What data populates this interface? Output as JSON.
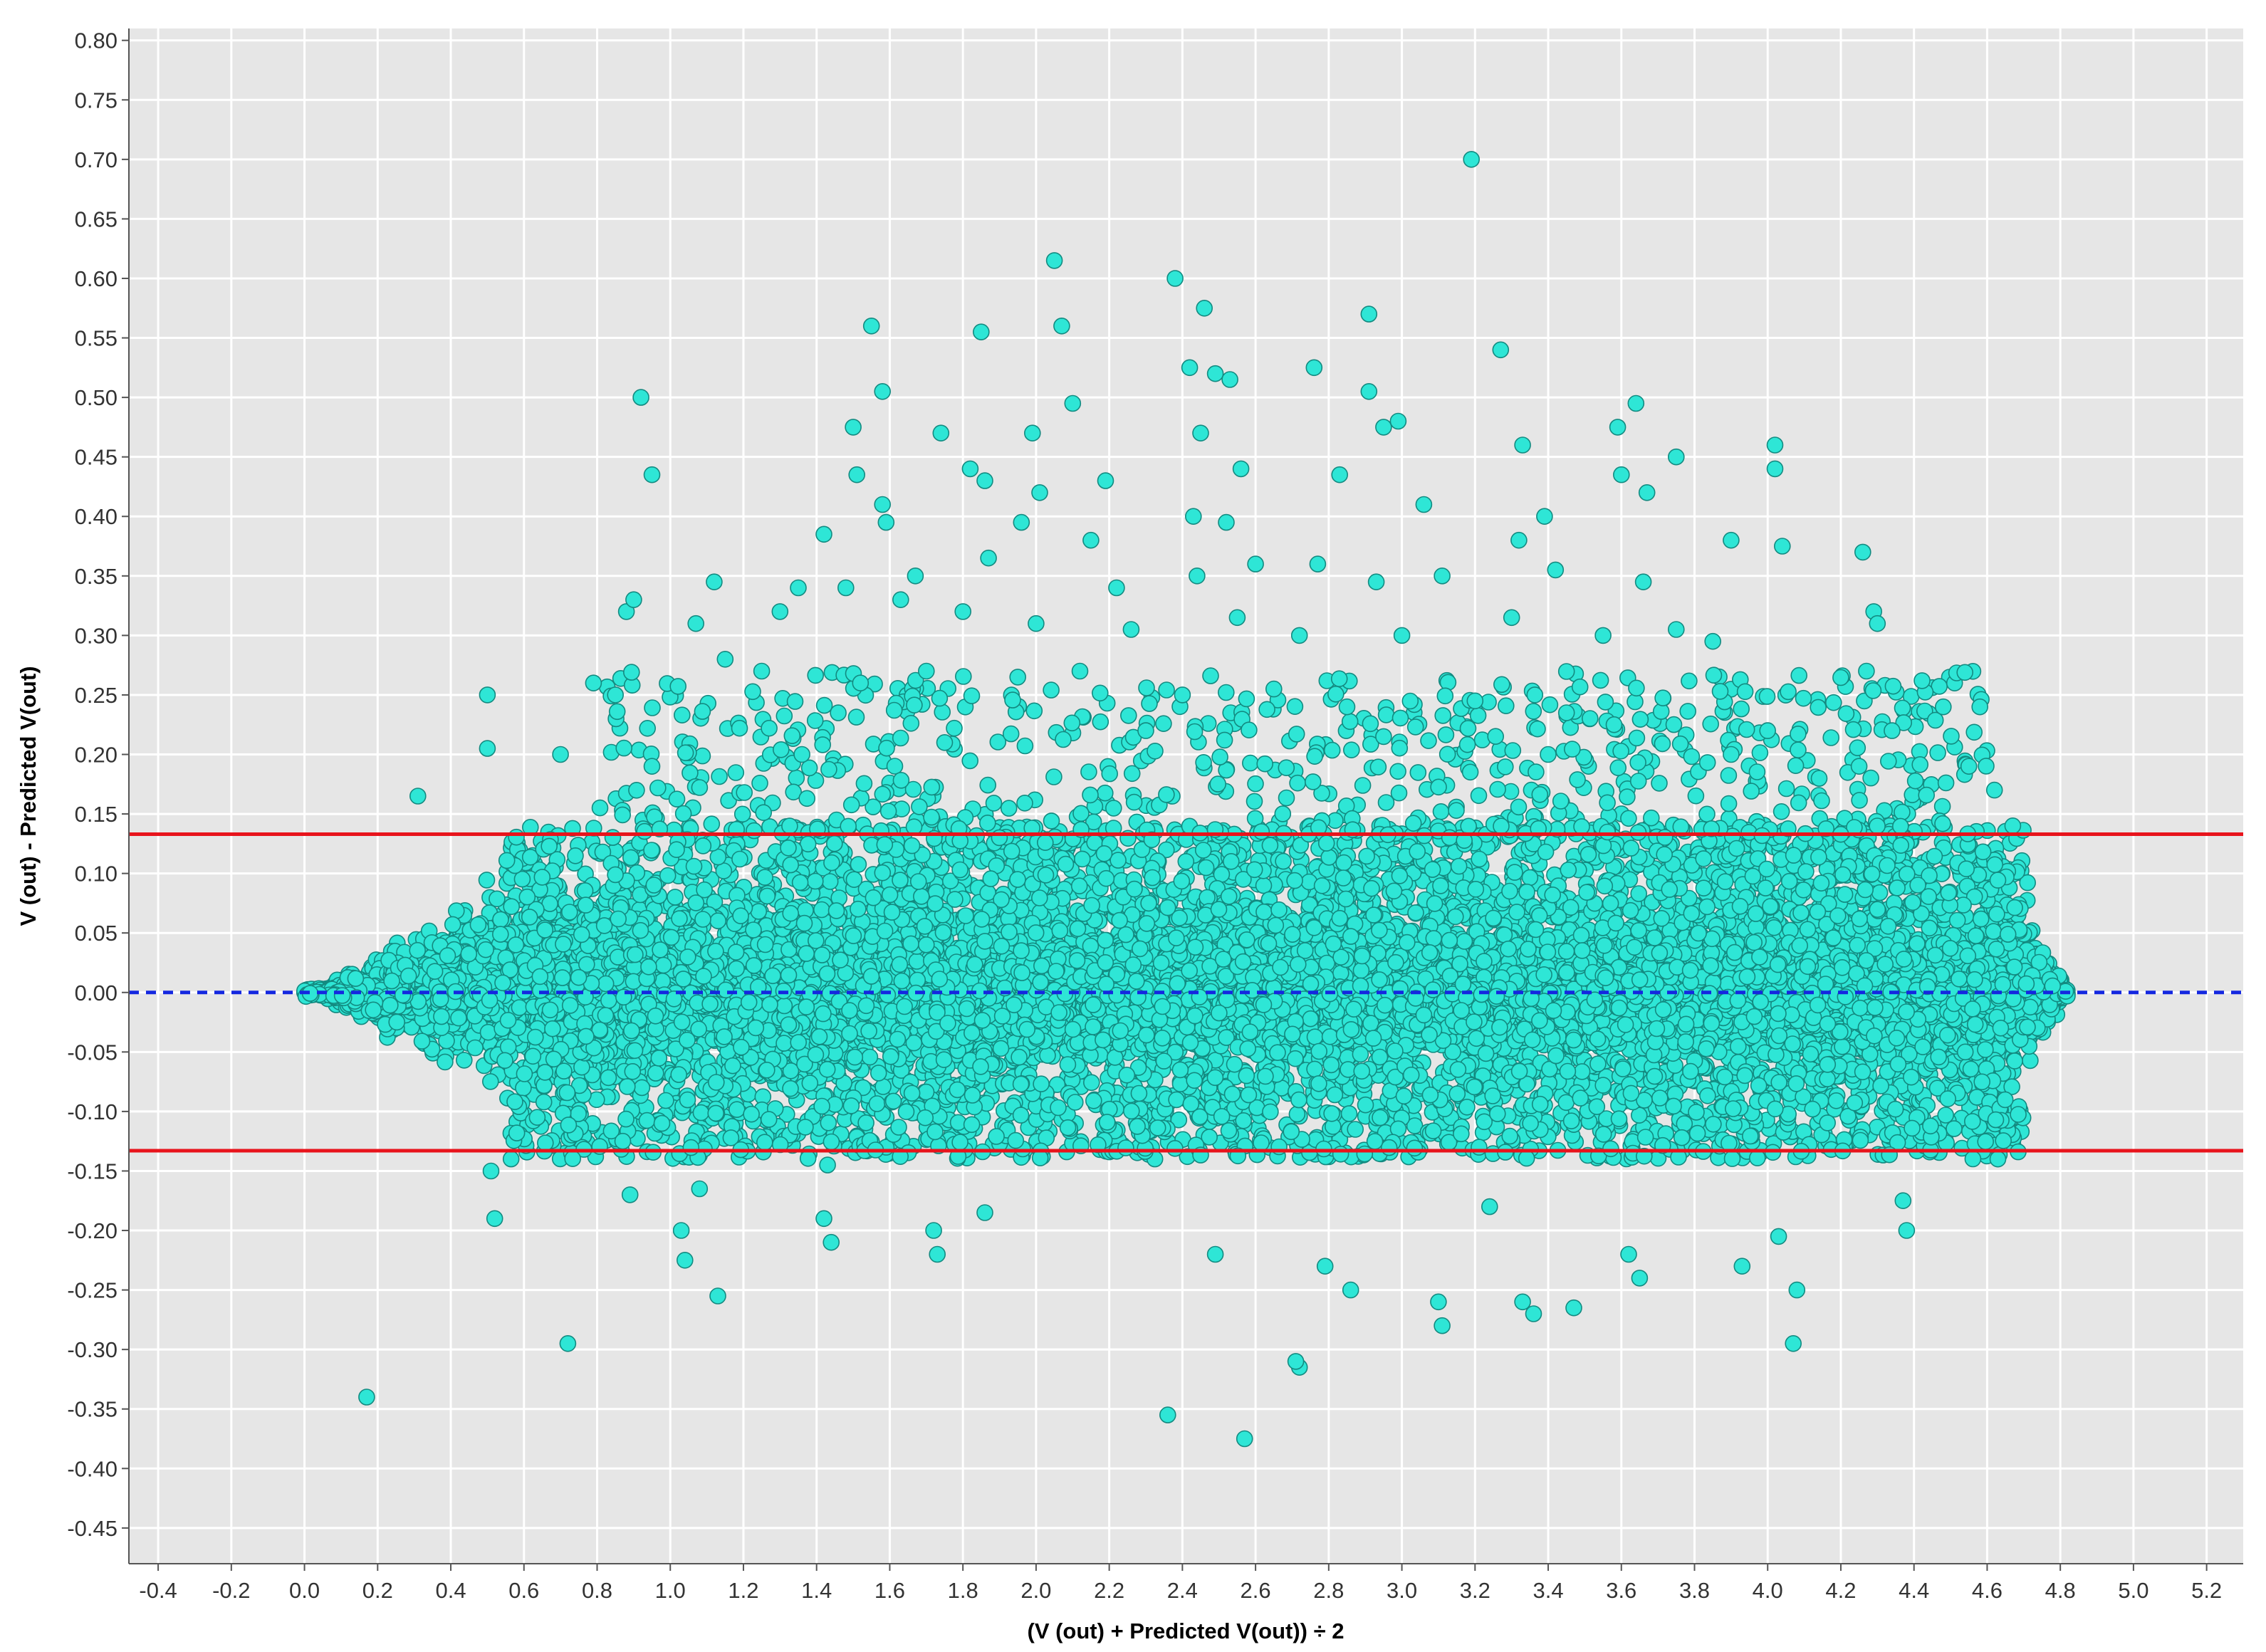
{
  "chart_data": {
    "type": "scatter",
    "title": "",
    "xlabel": "(V (out) + Predicted V(out)) ÷ 2",
    "ylabel": "V (out) - Predicted V(out)",
    "xlim": [
      -0.48,
      5.3
    ],
    "ylim": [
      -0.48,
      0.81
    ],
    "x_ticks": [
      -0.4,
      -0.2,
      0.0,
      0.2,
      0.4,
      0.6,
      0.8,
      1.0,
      1.2,
      1.4,
      1.6,
      1.8,
      2.0,
      2.2,
      2.4,
      2.6,
      2.8,
      3.0,
      3.2,
      3.4,
      3.6,
      3.8,
      4.0,
      4.2,
      4.4,
      4.6,
      4.8,
      5.0,
      5.2
    ],
    "x_tick_labels": [
      "-0.4",
      "-0.2",
      "0.0",
      "0.2",
      "0.4",
      "0.6",
      "0.8",
      "1.0",
      "1.2",
      "1.4",
      "1.6",
      "1.8",
      "2.0",
      "2.2",
      "2.4",
      "2.6",
      "2.8",
      "3.0",
      "3.2",
      "3.4",
      "3.6",
      "3.8",
      "4.0",
      "4.2",
      "4.4",
      "4.6",
      "4.8",
      "5.0",
      "5.2"
    ],
    "y_ticks": [
      0.8,
      0.75,
      0.7,
      0.65,
      0.6,
      0.55,
      0.5,
      0.45,
      0.4,
      0.35,
      0.3,
      0.25,
      0.2,
      0.15,
      0.1,
      0.05,
      0.0,
      -0.05,
      -0.1,
      -0.15,
      -0.2,
      -0.25,
      -0.3,
      -0.35,
      -0.4,
      -0.45
    ],
    "y_tick_labels": [
      "0.80",
      "0.75",
      "0.70",
      "0.65",
      "0.60",
      "0.55",
      "0.50",
      "0.45",
      "0.40",
      "0.35",
      "0.30",
      "0.25",
      "0.20",
      "0.15",
      "0.10",
      "0.05",
      "0.00",
      "-0.05",
      "-0.10",
      "-0.15",
      "-0.20",
      "-0.25",
      "-0.30",
      "-0.35",
      "-0.40",
      "-0.45"
    ],
    "grid": true,
    "legend": "none",
    "reference_lines": [
      {
        "y": 0.133,
        "color": "#e8141c",
        "style": "solid"
      },
      {
        "y": 0.0,
        "color": "#1428e0",
        "style": "dashed"
      },
      {
        "y": -0.133,
        "color": "#e8141c",
        "style": "solid"
      }
    ],
    "colors": {
      "marker_fill": "#2ee6d6",
      "marker_edge": "#138a80",
      "plot_background": "#e6e6e6",
      "grid": "#ffffff"
    },
    "series": [
      {
        "points": [
          [
            0.17,
            -0.34
          ],
          [
            0.72,
            -0.295
          ],
          [
            0.52,
            -0.19
          ],
          [
            0.51,
            -0.15
          ],
          [
            0.89,
            -0.17
          ],
          [
            1.03,
            -0.2
          ],
          [
            1.04,
            -0.225
          ],
          [
            1.13,
            -0.255
          ],
          [
            1.08,
            -0.165
          ],
          [
            0.87,
            -0.125
          ],
          [
            1.42,
            -0.19
          ],
          [
            1.44,
            -0.21
          ],
          [
            1.43,
            -0.145
          ],
          [
            1.73,
            -0.22
          ],
          [
            1.72,
            -0.2
          ],
          [
            1.86,
            -0.185
          ],
          [
            2.36,
            -0.355
          ],
          [
            2.57,
            -0.375
          ],
          [
            2.72,
            -0.315
          ],
          [
            2.71,
            -0.31
          ],
          [
            2.49,
            -0.22
          ],
          [
            2.86,
            -0.25
          ],
          [
            2.79,
            -0.23
          ],
          [
            3.1,
            -0.26
          ],
          [
            3.11,
            -0.28
          ],
          [
            3.33,
            -0.26
          ],
          [
            3.36,
            -0.27
          ],
          [
            3.47,
            -0.265
          ],
          [
            3.62,
            -0.22
          ],
          [
            3.65,
            -0.24
          ],
          [
            3.93,
            -0.23
          ],
          [
            4.03,
            -0.205
          ],
          [
            4.07,
            -0.295
          ],
          [
            4.08,
            -0.25
          ],
          [
            4.38,
            -0.2
          ],
          [
            4.37,
            -0.175
          ],
          [
            3.24,
            -0.18
          ],
          [
            3.19,
            0.7
          ],
          [
            2.05,
            0.615
          ],
          [
            2.38,
            0.6
          ],
          [
            2.46,
            0.575
          ],
          [
            2.07,
            0.56
          ],
          [
            1.55,
            0.56
          ],
          [
            1.85,
            0.555
          ],
          [
            2.91,
            0.57
          ],
          [
            3.27,
            0.54
          ],
          [
            2.42,
            0.525
          ],
          [
            2.49,
            0.52
          ],
          [
            2.53,
            0.515
          ],
          [
            2.76,
            0.525
          ],
          [
            0.92,
            0.5
          ],
          [
            1.58,
            0.505
          ],
          [
            2.1,
            0.495
          ],
          [
            2.91,
            0.505
          ],
          [
            3.64,
            0.495
          ],
          [
            1.5,
            0.475
          ],
          [
            1.74,
            0.47
          ],
          [
            1.99,
            0.47
          ],
          [
            2.45,
            0.47
          ],
          [
            2.95,
            0.475
          ],
          [
            2.99,
            0.48
          ],
          [
            3.33,
            0.46
          ],
          [
            3.59,
            0.475
          ],
          [
            4.02,
            0.46
          ],
          [
            4.02,
            0.44
          ],
          [
            0.95,
            0.435
          ],
          [
            1.51,
            0.435
          ],
          [
            1.82,
            0.44
          ],
          [
            1.86,
            0.43
          ],
          [
            2.56,
            0.44
          ],
          [
            2.83,
            0.435
          ],
          [
            3.6,
            0.435
          ],
          [
            3.67,
            0.42
          ],
          [
            3.75,
            0.45
          ],
          [
            1.58,
            0.41
          ],
          [
            1.59,
            0.395
          ],
          [
            2.01,
            0.42
          ],
          [
            2.19,
            0.43
          ],
          [
            2.52,
            0.395
          ],
          [
            3.06,
            0.41
          ],
          [
            3.39,
            0.4
          ],
          [
            1.42,
            0.385
          ],
          [
            1.96,
            0.395
          ],
          [
            2.15,
            0.38
          ],
          [
            2.43,
            0.4
          ],
          [
            3.32,
            0.38
          ],
          [
            3.9,
            0.38
          ],
          [
            4.04,
            0.375
          ],
          [
            4.26,
            0.37
          ],
          [
            1.12,
            0.345
          ],
          [
            1.35,
            0.34
          ],
          [
            1.67,
            0.35
          ],
          [
            1.87,
            0.365
          ],
          [
            2.22,
            0.34
          ],
          [
            2.44,
            0.35
          ],
          [
            2.6,
            0.36
          ],
          [
            2.77,
            0.36
          ],
          [
            2.93,
            0.345
          ],
          [
            3.11,
            0.35
          ],
          [
            3.42,
            0.355
          ],
          [
            3.66,
            0.345
          ],
          [
            4.29,
            0.32
          ],
          [
            4.3,
            0.31
          ],
          [
            0.88,
            0.32
          ],
          [
            0.9,
            0.33
          ],
          [
            1.07,
            0.31
          ],
          [
            1.3,
            0.32
          ],
          [
            1.48,
            0.34
          ],
          [
            1.63,
            0.33
          ],
          [
            1.8,
            0.32
          ],
          [
            2.0,
            0.31
          ],
          [
            2.26,
            0.305
          ],
          [
            2.55,
            0.315
          ],
          [
            2.72,
            0.3
          ],
          [
            3.0,
            0.3
          ],
          [
            3.3,
            0.315
          ],
          [
            3.55,
            0.3
          ],
          [
            3.75,
            0.305
          ],
          [
            3.85,
            0.295
          ],
          [
            0.31,
            0.165
          ],
          [
            0.79,
            0.26
          ],
          [
            0.85,
            0.25
          ],
          [
            1.15,
            0.28
          ],
          [
            1.25,
            0.27
          ],
          [
            1.52,
            0.26
          ],
          [
            1.7,
            0.27
          ],
          [
            1.95,
            0.265
          ],
          [
            2.12,
            0.27
          ],
          [
            2.4,
            0.25
          ],
          [
            2.65,
            0.255
          ],
          [
            2.85,
            0.24
          ],
          [
            3.2,
            0.245
          ],
          [
            3.45,
            0.235
          ],
          [
            3.58,
            0.225
          ],
          [
            4.0,
            0.22
          ],
          [
            4.27,
            0.27
          ],
          [
            4.48,
            0.24
          ],
          [
            4.58,
            0.24
          ],
          [
            4.34,
            0.22
          ],
          [
            0.5,
            0.25
          ],
          [
            0.5,
            0.205
          ],
          [
            0.7,
            0.2
          ],
          [
            0.95,
            0.19
          ],
          [
            1.36,
            0.2
          ],
          [
            1.75,
            0.21
          ],
          [
            2.3,
            0.22
          ],
          [
            2.95,
            0.215
          ],
          [
            3.4,
            0.2
          ],
          [
            3.9,
            0.2
          ],
          [
            4.25,
            0.19
          ],
          [
            4.55,
            0.19
          ],
          [
            4.62,
            0.17
          ],
          [
            4.67,
            0.14
          ]
        ]
      }
    ]
  }
}
